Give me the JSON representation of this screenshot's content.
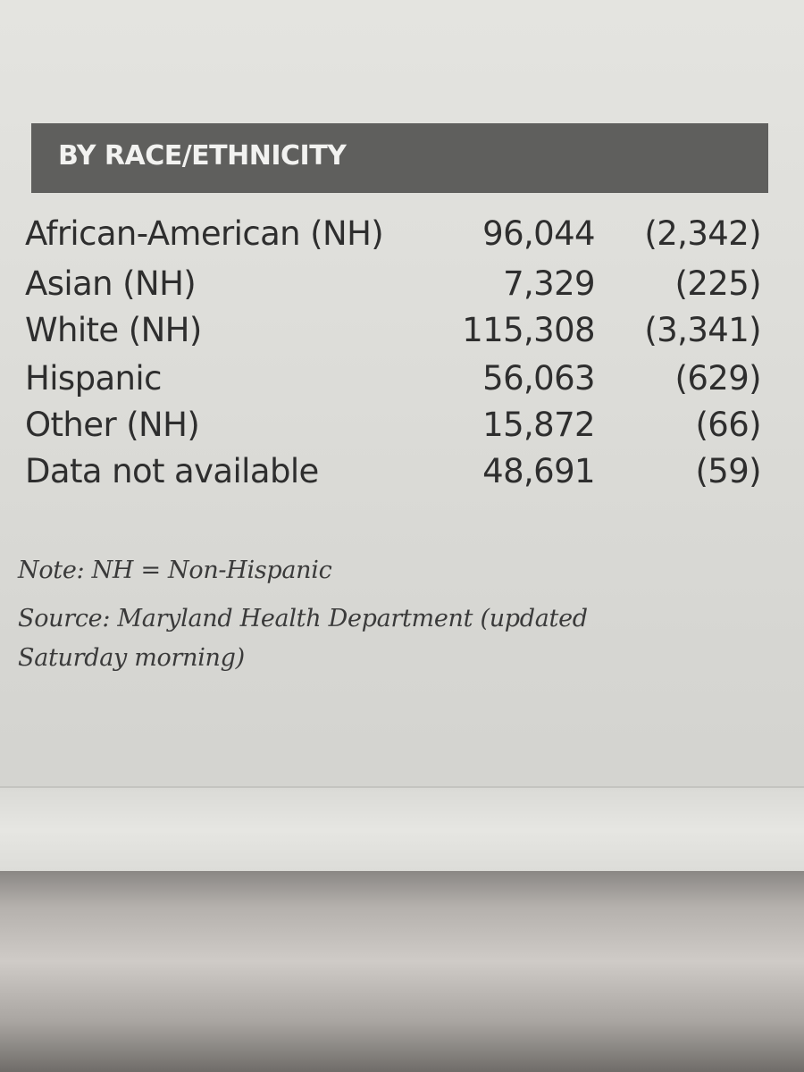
{
  "header": {
    "title": "BY RACE/ETHNICITY"
  },
  "rows": [
    {
      "label": "African-American (NH)",
      "cases": "96,044",
      "deaths": "(2,342)"
    },
    {
      "label": "Asian (NH)",
      "cases": "7,329",
      "deaths": "(225)"
    },
    {
      "label": "White (NH)",
      "cases": "115,308",
      "deaths": "(3,341)"
    },
    {
      "label": "Hispanic",
      "cases": "56,063",
      "deaths": "(629)"
    },
    {
      "label": "Other (NH)",
      "cases": "15,872",
      "deaths": "(66)"
    },
    {
      "label": "Data not available",
      "cases": "48,691",
      "deaths": "(59)"
    }
  ],
  "notes": {
    "note": "Note: NH = Non-Hispanic",
    "source_line1": "Source: Maryland Health Department (updated",
    "source_line2": "Saturday morning)"
  }
}
